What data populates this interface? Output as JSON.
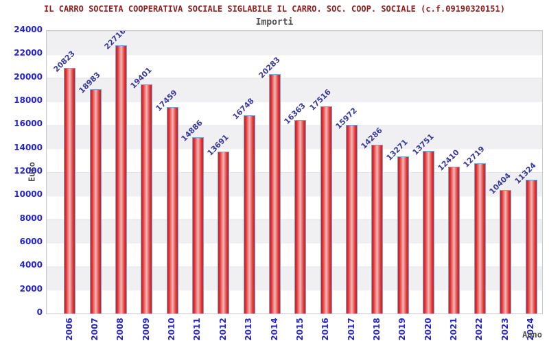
{
  "chart_data": {
    "type": "bar",
    "title": "IL CARRO SOCIETA COOPERATIVA SOCIALE SIGLABILE IL CARRO. SOC. COOP. SOCIALE (c.f.09190320151)",
    "subtitle": "Importi",
    "xlabel": "Anno",
    "ylabel": "Euro",
    "categories": [
      "2006",
      "2007",
      "2008",
      "2009",
      "2010",
      "2011",
      "2012",
      "2013",
      "2014",
      "2015",
      "2016",
      "2017",
      "2018",
      "2019",
      "2020",
      "2021",
      "2022",
      "2023",
      "2024"
    ],
    "values": [
      20823,
      18983,
      22716,
      19401,
      17459,
      14886,
      13691,
      16748,
      20283,
      16363,
      17516,
      15972,
      14286,
      13271,
      13751,
      12410,
      12719,
      10404,
      11324
    ],
    "ylim": [
      0,
      24000
    ],
    "ytick_step": 2000,
    "grid": "horizontal-bands",
    "legend": "none",
    "value_labels_rotation_deg": -45,
    "xtick_rotation_deg": -90,
    "colors": {
      "title": "#8f1f1f",
      "subtitle": "#4f4f4f",
      "tick_labels": "#2424cc",
      "value_labels": "#3a3a9e",
      "bar_border": "#76a5dc",
      "bar_fill": "#e02e2e",
      "bar_highlight": "#f4baba",
      "band": "#f0f0f2"
    }
  }
}
